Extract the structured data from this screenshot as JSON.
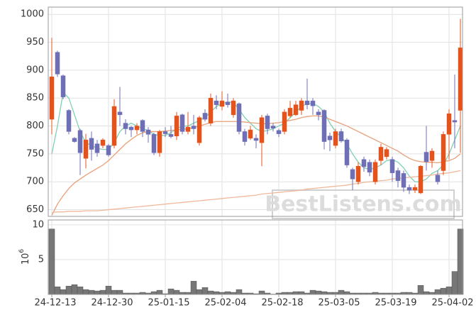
{
  "chart_data": [
    {
      "type": "candlestick",
      "up_color": "#e4531c",
      "down_color": "#6f6fb5",
      "open": [
        812,
        932,
        890,
        828,
        778,
        792,
        742,
        778,
        768,
        765,
        765,
        765,
        825,
        805,
        798,
        793,
        810,
        793,
        785,
        752,
        790,
        785,
        782,
        820,
        790,
        800,
        770,
        823,
        805,
        845,
        835,
        843,
        820,
        840,
        790,
        778,
        778,
        770,
        818,
        800,
        792,
        790,
        818,
        820,
        828,
        845,
        845,
        825,
        828,
        782,
        765,
        790,
        775,
        722,
        700,
        740,
        735,
        700,
        738,
        745,
        740,
        720,
        715,
        690,
        685,
        680,
        753,
        738,
        712,
        720,
        785,
        810,
        828
      ],
      "high": [
        958,
        935,
        892,
        830,
        780,
        795,
        786,
        790,
        775,
        778,
        768,
        848,
        870,
        812,
        800,
        805,
        812,
        798,
        788,
        793,
        798,
        800,
        825,
        822,
        825,
        820,
        818,
        830,
        858,
        855,
        862,
        858,
        850,
        842,
        795,
        800,
        785,
        820,
        822,
        805,
        795,
        830,
        845,
        845,
        850,
        885,
        850,
        830,
        830,
        788,
        795,
        795,
        778,
        725,
        735,
        745,
        740,
        740,
        768,
        762,
        745,
        725,
        720,
        695,
        695,
        730,
        800,
        760,
        720,
        790,
        830,
        892,
        992
      ],
      "low": [
        785,
        888,
        848,
        785,
        770,
        712,
        724,
        738,
        745,
        760,
        745,
        760,
        800,
        785,
        780,
        785,
        780,
        770,
        748,
        745,
        780,
        778,
        775,
        785,
        785,
        785,
        765,
        808,
        800,
        830,
        828,
        833,
        815,
        785,
        765,
        775,
        760,
        728,
        785,
        790,
        780,
        785,
        815,
        818,
        820,
        830,
        820,
        810,
        758,
        755,
        760,
        770,
        725,
        685,
        695,
        718,
        710,
        695,
        730,
        740,
        700,
        690,
        682,
        678,
        680,
        678,
        720,
        725,
        695,
        712,
        740,
        760,
        752
      ],
      "close": [
        888,
        893,
        852,
        790,
        772,
        752,
        775,
        758,
        752,
        775,
        748,
        835,
        820,
        795,
        793,
        800,
        790,
        785,
        752,
        790,
        786,
        781,
        818,
        790,
        798,
        795,
        815,
        812,
        850,
        838,
        845,
        838,
        845,
        790,
        772,
        793,
        774,
        815,
        795,
        796,
        786,
        825,
        832,
        838,
        845,
        838,
        836,
        820,
        772,
        775,
        790,
        773,
        730,
        705,
        728,
        727,
        717,
        735,
        762,
        758,
        716,
        702,
        690,
        685,
        690,
        728,
        736,
        755,
        700,
        785,
        822,
        807,
        940
      ],
      "series": [
        {
          "color": "#7fd0b0",
          "values": [
            750,
            800,
            860,
            850,
            820,
            790,
            770,
            765,
            760,
            758,
            758,
            770,
            790,
            800,
            805,
            800,
            795,
            792,
            785,
            783,
            783,
            788,
            795,
            800,
            800,
            805,
            810,
            815,
            825,
            835,
            840,
            843,
            842,
            830,
            815,
            805,
            795,
            790,
            792,
            795,
            800,
            805,
            815,
            825,
            835,
            840,
            840,
            835,
            825,
            805,
            790,
            780,
            768,
            750,
            735,
            725,
            722,
            725,
            730,
            738,
            740,
            735,
            725,
            710,
            700,
            700,
            705,
            715,
            720,
            730,
            750,
            775,
            800
          ]
        },
        {
          "color": "#e8a07a",
          "values": [
            640,
            660,
            675,
            688,
            698,
            705,
            712,
            718,
            724,
            730,
            738,
            748,
            758,
            768,
            776,
            783,
            788,
            790,
            790,
            790,
            791,
            792,
            793,
            794,
            795,
            797,
            800,
            803,
            806,
            808,
            808,
            808,
            808,
            808,
            807,
            806,
            805,
            804,
            804,
            805,
            806,
            808,
            810,
            812,
            815,
            817,
            818,
            818,
            816,
            812,
            808,
            804,
            800,
            795,
            790,
            785,
            780,
            775,
            770,
            765,
            760,
            755,
            748,
            742,
            738,
            736,
            735,
            735,
            734,
            736,
            738,
            742,
            750
          ]
        },
        {
          "color": "#f0b89a",
          "values": [
            645,
            646,
            646,
            647,
            647,
            647,
            648,
            648,
            648,
            649,
            650,
            651,
            652,
            653,
            654,
            655,
            656,
            657,
            658,
            659,
            660,
            661,
            662,
            663,
            664,
            665,
            666,
            667,
            668,
            669,
            670,
            671,
            672,
            673,
            674,
            675,
            676,
            678,
            679,
            680,
            681,
            682,
            683,
            684,
            685,
            687,
            688,
            689,
            690,
            691,
            692,
            693,
            694,
            696,
            697,
            699,
            700,
            701,
            702,
            703,
            705,
            706,
            707,
            708,
            709,
            710,
            711,
            712,
            714,
            715,
            716,
            718,
            720
          ]
        }
      ],
      "ylim": [
        638,
        1013
      ],
      "yticks": [
        650,
        700,
        750,
        800,
        850,
        900,
        950,
        1000
      ],
      "grid": true,
      "watermark": "BestListens.com"
    },
    {
      "type": "bar",
      "color": "#777777",
      "ylabel_base": "10",
      "ylabel_exponent": "6",
      "categories": [
        "24-12-13",
        null,
        null,
        null,
        null,
        null,
        null,
        null,
        null,
        null,
        "24-12-30",
        null,
        null,
        null,
        null,
        null,
        null,
        null,
        null,
        null,
        "25-01-15",
        null,
        null,
        null,
        null,
        null,
        null,
        null,
        null,
        null,
        "25-02-04",
        null,
        null,
        null,
        null,
        null,
        null,
        null,
        null,
        null,
        "25-02-18",
        null,
        null,
        null,
        null,
        null,
        null,
        null,
        null,
        null,
        "25-03-05",
        null,
        null,
        null,
        null,
        null,
        null,
        null,
        null,
        null,
        "25-03-19",
        null,
        null,
        null,
        null,
        null,
        null,
        null,
        null,
        null,
        "25-04-02",
        null,
        null
      ],
      "values": [
        9.4,
        1.1,
        0.7,
        1.2,
        1.4,
        1.1,
        0.7,
        0.6,
        0.5,
        0.6,
        1.2,
        0.6,
        0.6,
        0.2,
        0.2,
        0.2,
        0.3,
        0.2,
        0.4,
        0.6,
        0.1,
        0.8,
        0.6,
        0.3,
        0.3,
        1.9,
        0.7,
        1.0,
        0.5,
        0.4,
        0.3,
        0.4,
        0.3,
        0.7,
        0.2,
        0.2,
        0.1,
        0.5,
        0.2,
        0.05,
        0.2,
        0.3,
        0.3,
        0.4,
        0.4,
        0.2,
        0.6,
        0.5,
        0.4,
        0.3,
        0.3,
        0.6,
        0.4,
        0.2,
        0.2,
        0.2,
        0.2,
        0.3,
        0.2,
        0.2,
        0.2,
        0.2,
        0.3,
        0.3,
        0.2,
        1.3,
        0.4,
        0.3,
        0.7,
        0.9,
        1.1,
        3.3,
        9.4
      ],
      "ylim": [
        0,
        10.7
      ],
      "yticks": [
        5,
        10
      ]
    }
  ]
}
